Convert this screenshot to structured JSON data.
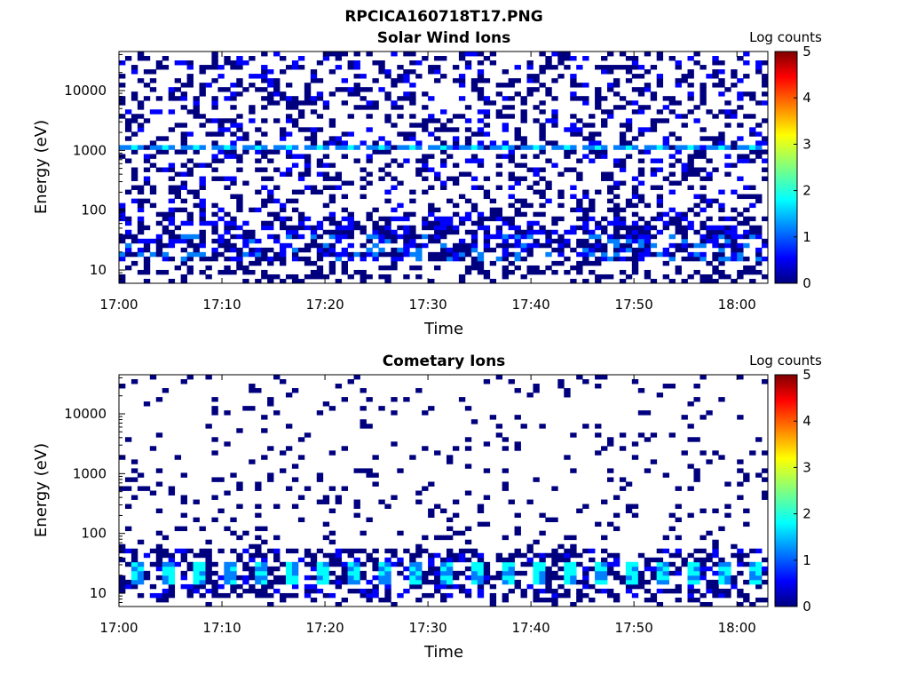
{
  "figure_title": "RPCICA160718T17.PNG",
  "colors": {
    "colormap": [
      "#00007f",
      "#0000ff",
      "#007fff",
      "#00ffff",
      "#7fff7f",
      "#ffff00",
      "#ff7f00",
      "#ff0000",
      "#7f0000"
    ],
    "axes": "#000000",
    "background": "#ffffff"
  },
  "chart_data": [
    {
      "type": "heatmap",
      "title": "Solar Wind Ions",
      "xlabel": "Time",
      "ylabel": "Energy (eV)",
      "x_ticks": [
        "17:00",
        "17:10",
        "17:20",
        "17:30",
        "17:40",
        "17:50",
        "18:00"
      ],
      "y_ticks": [
        "10",
        "100",
        "1000",
        "10000"
      ],
      "y_scale": "log",
      "ylim": [
        6,
        45000
      ],
      "xlim": [
        "17:00",
        "18:03"
      ],
      "colorbar": {
        "label": "Log counts",
        "ticks": [
          "0",
          "1",
          "2",
          "3",
          "4",
          "5"
        ],
        "range": [
          0,
          5
        ]
      },
      "features": [
        {
          "desc": "sporadic counts at all energies",
          "energy_range": [
            10,
            40000
          ],
          "log_counts": [
            0.3,
            1.0
          ]
        },
        {
          "desc": "recurring peak band",
          "energy": 1100,
          "log_counts": [
            1.3,
            1.8
          ]
        },
        {
          "desc": "dense low-energy band",
          "energy_range": [
            15,
            40
          ],
          "log_counts": [
            0.3,
            1.2
          ]
        }
      ]
    },
    {
      "type": "heatmap",
      "title": "Cometary Ions",
      "xlabel": "Time",
      "ylabel": "Energy (eV)",
      "x_ticks": [
        "17:00",
        "17:10",
        "17:20",
        "17:30",
        "17:40",
        "17:50",
        "18:00"
      ],
      "y_ticks": [
        "10",
        "100",
        "1000",
        "10000"
      ],
      "y_scale": "log",
      "ylim": [
        6,
        45000
      ],
      "xlim": [
        "17:00",
        "18:03"
      ],
      "colorbar": {
        "label": "Log counts",
        "ticks": [
          "0",
          "1",
          "2",
          "3",
          "4",
          "5"
        ],
        "range": [
          0,
          5
        ]
      },
      "features": [
        {
          "desc": "sparse counts at high energies",
          "energy_range": [
            50,
            30000
          ],
          "log_counts": [
            0.3,
            0.6
          ]
        },
        {
          "desc": "periodic peaks roughly every 3 min",
          "energy_range": [
            15,
            35
          ],
          "log_counts": [
            1.0,
            2.0
          ]
        },
        {
          "desc": "low-energy background band",
          "energy_range": [
            8,
            50
          ],
          "log_counts": [
            0.3,
            1.0
          ]
        }
      ]
    }
  ]
}
